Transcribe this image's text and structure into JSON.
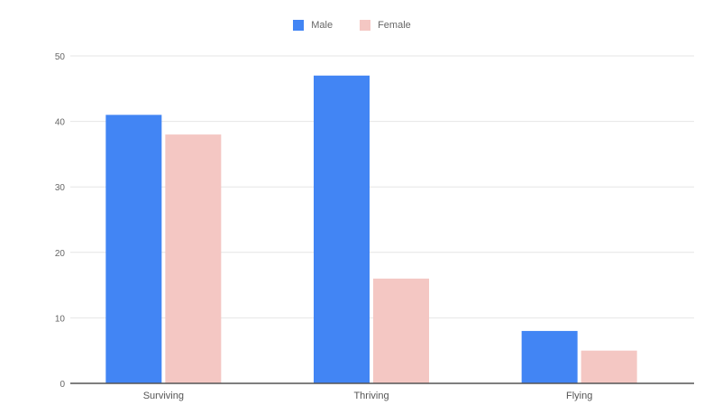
{
  "chart_data": {
    "type": "bar",
    "categories": [
      "Surviving",
      "Thriving",
      "Flying"
    ],
    "series": [
      {
        "name": "Male",
        "color": "#4285f4",
        "values": [
          41,
          47,
          8
        ]
      },
      {
        "name": "Female",
        "color": "#f4c7c3",
        "values": [
          38,
          16,
          5
        ]
      }
    ],
    "ylim": [
      0,
      50
    ],
    "yticks": [
      0,
      10,
      20,
      30,
      40,
      50
    ],
    "grid": true,
    "legend_position": "top-center",
    "title": "",
    "xlabel": "",
    "ylabel": ""
  }
}
